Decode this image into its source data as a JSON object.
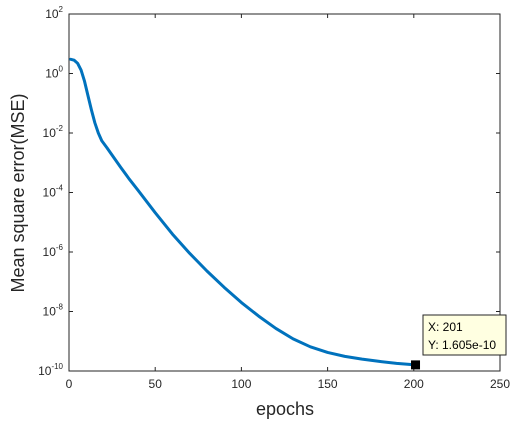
{
  "chart_data": {
    "type": "line",
    "xlabel": "epochs",
    "ylabel": "Mean square error(MSE)",
    "xlim": [
      0,
      250
    ],
    "ylim": [
      1e-10,
      100
    ],
    "yscale": "log",
    "grid": false,
    "x_ticks": [
      0,
      50,
      100,
      150,
      200,
      250
    ],
    "x_tick_labels": [
      "0",
      "50",
      "100",
      "150",
      "200",
      "250"
    ],
    "y_ticks": [
      {
        "value": 1e-10,
        "base": "10",
        "exp": "-10"
      },
      {
        "value": 1e-08,
        "base": "10",
        "exp": "-8"
      },
      {
        "value": 1e-06,
        "base": "10",
        "exp": "-6"
      },
      {
        "value": 0.0001,
        "base": "10",
        "exp": "-4"
      },
      {
        "value": 0.01,
        "base": "10",
        "exp": "-2"
      },
      {
        "value": 1,
        "base": "10",
        "exp": "0"
      },
      {
        "value": 100,
        "base": "10",
        "exp": "2"
      }
    ],
    "series": [
      {
        "color": "#0072bd",
        "x": [
          1,
          3,
          5,
          7,
          9,
          11,
          13,
          15,
          17,
          19,
          22,
          25,
          30,
          35,
          40,
          50,
          60,
          70,
          80,
          90,
          100,
          110,
          120,
          130,
          140,
          150,
          160,
          170,
          180,
          190,
          201
        ],
        "y": [
          3.0,
          2.8,
          2.2,
          1.3,
          0.55,
          0.18,
          0.06,
          0.022,
          0.01,
          0.0055,
          0.0032,
          0.0018,
          0.0007,
          0.00028,
          0.00012,
          2.1e-05,
          4e-06,
          9e-07,
          2.3e-07,
          6.5e-08,
          2e-08,
          7e-09,
          2.7e-09,
          1.2e-09,
          6.5e-10,
          4.2e-10,
          3.1e-10,
          2.5e-10,
          2.1e-10,
          1.8e-10,
          1.605e-10
        ]
      }
    ],
    "datatip": {
      "x": 201,
      "y": 1.605e-10,
      "line1": "X: 201",
      "line2": "Y: 1.605e-10"
    }
  },
  "colors": {
    "line": "#0072bd",
    "axis": "#262626",
    "datatip_bg": "#ffffe1"
  }
}
